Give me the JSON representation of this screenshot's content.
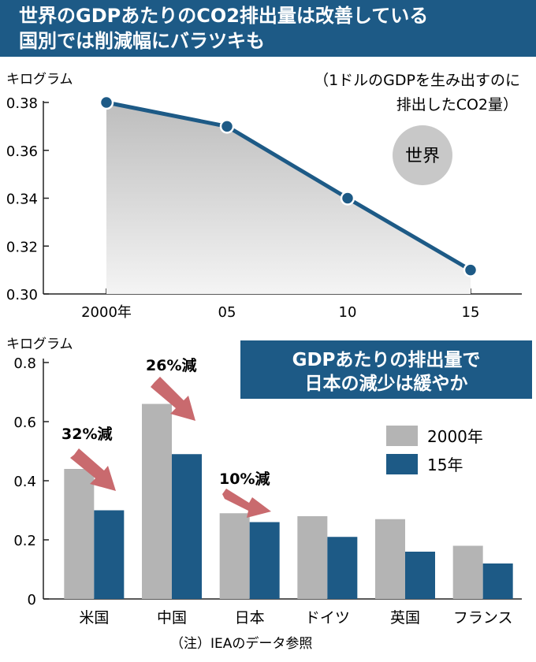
{
  "header": {
    "title_line1": "世界のGDPあたりのCO2排出量は改善している",
    "title_line2": "国別では削減幅にバラツキも"
  },
  "top_chart": {
    "unit": "キログラム",
    "note_line1": "（1ドルのGDPを生み出すのに",
    "note_line2": "排出したCO2量）",
    "badge": "世界"
  },
  "bottom_chart": {
    "unit": "キログラム",
    "callout_line1": "GDPあたりの排出量で",
    "callout_line2": "日本の減少は緩やか",
    "annotations": [
      "32%減",
      "26%減",
      "10%減"
    ]
  },
  "footnote": "（注）IEAのデータ参照",
  "colors": {
    "navy": "#1d5a86",
    "gray": "#b4b4b4",
    "arrow": "#c96a6e",
    "area": "#c8c8c8"
  },
  "chart_data": [
    {
      "type": "line",
      "x": [
        "2000年",
        "05",
        "10",
        "15"
      ],
      "series": [
        {
          "values": [
            0.38,
            0.37,
            0.34,
            0.31
          ]
        }
      ],
      "ylabel": "キログラム",
      "ylim": [
        0.3,
        0.38
      ],
      "yticks": [
        0.3,
        0.32,
        0.34,
        0.36,
        0.38
      ],
      "area_fill": true
    },
    {
      "type": "bar",
      "categories": [
        "米国",
        "中国",
        "日本",
        "ドイツ",
        "英国",
        "フランス"
      ],
      "series": [
        {
          "name": "2000年",
          "values": [
            0.44,
            0.66,
            0.29,
            0.28,
            0.27,
            0.18
          ]
        },
        {
          "name": "15年",
          "values": [
            0.3,
            0.49,
            0.26,
            0.21,
            0.16,
            0.12
          ]
        }
      ],
      "ylabel": "キログラム",
      "ylim": [
        0,
        0.8
      ],
      "yticks": [
        0,
        0.2,
        0.4,
        0.6,
        0.8
      ],
      "legend": "right"
    }
  ]
}
